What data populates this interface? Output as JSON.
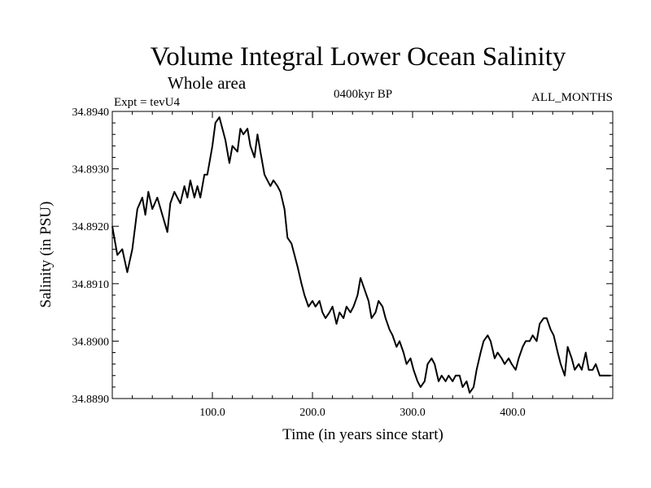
{
  "chart_data": {
    "type": "line",
    "title": "Volume Integral Lower Ocean Salinity",
    "subtitle": "Whole area",
    "expt_label": "Expt = tevU4",
    "period_label": "0400kyr BP",
    "months_label": "ALL_MONTHS",
    "xlabel": "Time (in years since start)",
    "ylabel": "Salinity (in PSU)",
    "xlim": [
      0,
      500
    ],
    "ylim": [
      34.889,
      34.894
    ],
    "xticks": [
      100,
      200,
      300,
      400
    ],
    "xtick_labels": [
      "100.0",
      "200.0",
      "300.0",
      "400.0"
    ],
    "yticks": [
      34.889,
      34.89,
      34.891,
      34.892,
      34.893,
      34.894
    ],
    "ytick_labels": [
      "34.8890",
      "34.8900",
      "34.8910",
      "34.8920",
      "34.8930",
      "34.8940"
    ],
    "grid": false,
    "series": [
      {
        "x": [
          0,
          5,
          10,
          15,
          20,
          25,
          30,
          33,
          36,
          40,
          45,
          50,
          55,
          58,
          62,
          65,
          68,
          72,
          75,
          78,
          82,
          85,
          88,
          92,
          95,
          100,
          103,
          107,
          110,
          113,
          117,
          120,
          125,
          128,
          131,
          135,
          138,
          142,
          145,
          148,
          152,
          155,
          158,
          161,
          165,
          168,
          172,
          175,
          179,
          182,
          185,
          189,
          192,
          196,
          200,
          203,
          207,
          210,
          213,
          217,
          220,
          224,
          227,
          231,
          234,
          238,
          241,
          245,
          248,
          252,
          256,
          259,
          263,
          266,
          270,
          273,
          277,
          280,
          284,
          287,
          291,
          294,
          298,
          301,
          305,
          308,
          312,
          315,
          319,
          322,
          326,
          329,
          333,
          336,
          340,
          343,
          347,
          350,
          354,
          357,
          361,
          364,
          368,
          371,
          375,
          378,
          382,
          385,
          389,
          392,
          396,
          399,
          403,
          406,
          410,
          413,
          417,
          420,
          424,
          427,
          431,
          434,
          438,
          441,
          445,
          448,
          452,
          455,
          459,
          462,
          466,
          469,
          473,
          476,
          480,
          483,
          487,
          490,
          494,
          498
        ],
        "values": [
          34.892,
          34.8915,
          34.8916,
          34.8912,
          34.8916,
          34.8923,
          34.8925,
          34.8922,
          34.8926,
          34.8923,
          34.8925,
          34.8922,
          34.8919,
          34.8924,
          34.8926,
          34.8925,
          34.8924,
          34.8927,
          34.8925,
          34.8928,
          34.8925,
          34.8927,
          34.8925,
          34.8929,
          34.8929,
          34.8934,
          34.8938,
          34.8939,
          34.8937,
          34.8935,
          34.8931,
          34.8934,
          34.8933,
          34.8937,
          34.8936,
          34.8937,
          34.8934,
          34.8932,
          34.8936,
          34.8933,
          34.8929,
          34.8928,
          34.8927,
          34.8928,
          34.8927,
          34.8926,
          34.8923,
          34.8918,
          34.8917,
          34.8915,
          34.8913,
          34.891,
          34.8908,
          34.8906,
          34.8907,
          34.8906,
          34.8907,
          34.8905,
          34.8904,
          34.8905,
          34.8906,
          34.8903,
          34.8905,
          34.8904,
          34.8906,
          34.8905,
          34.8906,
          34.8908,
          34.8911,
          34.8909,
          34.8907,
          34.8904,
          34.8905,
          34.8907,
          34.8906,
          34.8904,
          34.8902,
          34.8901,
          34.8899,
          34.89,
          34.8898,
          34.8896,
          34.8897,
          34.8895,
          34.8893,
          34.8892,
          34.8893,
          34.8896,
          34.8897,
          34.8896,
          34.8893,
          34.8894,
          34.8893,
          34.8894,
          34.8893,
          34.8894,
          34.8894,
          34.8892,
          34.8893,
          34.8891,
          34.8892,
          34.8895,
          34.8898,
          34.89,
          34.8901,
          34.89,
          34.8897,
          34.8898,
          34.8897,
          34.8896,
          34.8897,
          34.8896,
          34.8895,
          34.8897,
          34.8899,
          34.89,
          34.89,
          34.8901,
          34.89,
          34.8903,
          34.8904,
          34.8904,
          34.8902,
          34.8901,
          34.8898,
          34.8896,
          34.8894,
          34.8899,
          34.8897,
          34.8895,
          34.8896,
          34.8895,
          34.8898,
          34.8895,
          34.8895,
          34.8896,
          34.8894,
          34.8894,
          34.8894,
          34.8894
        ]
      }
    ]
  }
}
